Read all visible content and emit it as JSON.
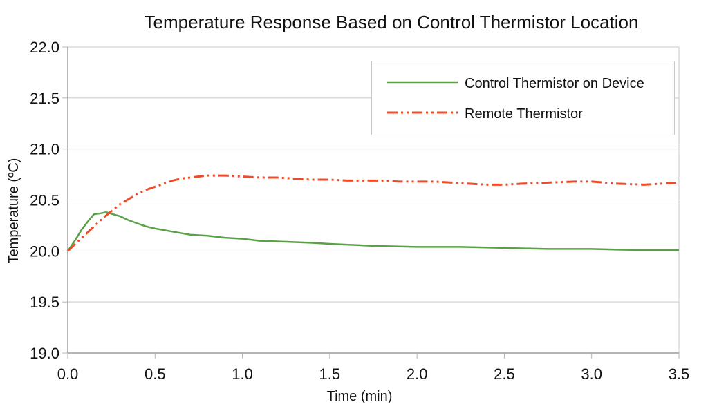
{
  "chart_data": {
    "type": "line",
    "title": "Temperature Response Based on Control Thermistor Location",
    "xlabel": "Time (min)",
    "ylabel": "Temperature (ºC)",
    "xlim": [
      0,
      3.5
    ],
    "ylim": [
      19.0,
      22.0
    ],
    "x_ticks": [
      0.0,
      0.5,
      1.0,
      1.5,
      2.0,
      2.5,
      3.0,
      3.5
    ],
    "y_ticks": [
      19.0,
      19.5,
      20.0,
      20.5,
      21.0,
      21.5,
      22.0
    ],
    "grid": "horizontal-only",
    "legend_position": "top-right-inside",
    "grid_color": "#c9c9c9",
    "axis_color": "#9b9b9b",
    "tick_color": "#b4b4b4",
    "text_color": "#111111",
    "series": [
      {
        "name": "Control Thermistor on Device",
        "color": "#5aa046",
        "line_style": "solid",
        "points": [
          [
            0,
            20.0
          ],
          [
            0.04,
            20.1
          ],
          [
            0.08,
            20.21
          ],
          [
            0.12,
            20.3
          ],
          [
            0.15,
            20.36
          ],
          [
            0.19,
            20.37
          ],
          [
            0.22,
            20.38
          ],
          [
            0.26,
            20.36
          ],
          [
            0.3,
            20.34
          ],
          [
            0.35,
            20.3
          ],
          [
            0.4,
            20.27
          ],
          [
            0.45,
            20.24
          ],
          [
            0.5,
            20.22
          ],
          [
            0.6,
            20.19
          ],
          [
            0.7,
            20.16
          ],
          [
            0.8,
            20.15
          ],
          [
            0.9,
            20.13
          ],
          [
            1.0,
            20.12
          ],
          [
            1.1,
            20.1
          ],
          [
            1.25,
            20.09
          ],
          [
            1.4,
            20.08
          ],
          [
            1.5,
            20.07
          ],
          [
            1.75,
            20.05
          ],
          [
            2.0,
            20.04
          ],
          [
            2.25,
            20.04
          ],
          [
            2.5,
            20.03
          ],
          [
            2.75,
            20.02
          ],
          [
            3.0,
            20.02
          ],
          [
            3.25,
            20.01
          ],
          [
            3.5,
            20.01
          ]
        ]
      },
      {
        "name": "Remote Thermistor",
        "color": "#ee4c28",
        "line_style": "dash-dot-dot",
        "points": [
          [
            0,
            20.0
          ],
          [
            0.05,
            20.08
          ],
          [
            0.1,
            20.16
          ],
          [
            0.15,
            20.24
          ],
          [
            0.2,
            20.32
          ],
          [
            0.25,
            20.39
          ],
          [
            0.3,
            20.46
          ],
          [
            0.35,
            20.51
          ],
          [
            0.4,
            20.56
          ],
          [
            0.45,
            20.6
          ],
          [
            0.5,
            20.63
          ],
          [
            0.55,
            20.66
          ],
          [
            0.6,
            20.69
          ],
          [
            0.65,
            20.71
          ],
          [
            0.7,
            20.72
          ],
          [
            0.75,
            20.73
          ],
          [
            0.8,
            20.74
          ],
          [
            0.9,
            20.74
          ],
          [
            1.0,
            20.73
          ],
          [
            1.1,
            20.72
          ],
          [
            1.2,
            20.72
          ],
          [
            1.3,
            20.71
          ],
          [
            1.4,
            20.7
          ],
          [
            1.5,
            20.7
          ],
          [
            1.6,
            20.69
          ],
          [
            1.7,
            20.69
          ],
          [
            1.8,
            20.69
          ],
          [
            1.9,
            20.68
          ],
          [
            2.0,
            20.68
          ],
          [
            2.1,
            20.68
          ],
          [
            2.2,
            20.67
          ],
          [
            2.3,
            20.66
          ],
          [
            2.4,
            20.65
          ],
          [
            2.5,
            20.65
          ],
          [
            2.6,
            20.66
          ],
          [
            2.75,
            20.67
          ],
          [
            2.9,
            20.68
          ],
          [
            3.0,
            20.68
          ],
          [
            3.15,
            20.66
          ],
          [
            3.3,
            20.65
          ],
          [
            3.4,
            20.66
          ],
          [
            3.5,
            20.67
          ]
        ]
      }
    ]
  }
}
